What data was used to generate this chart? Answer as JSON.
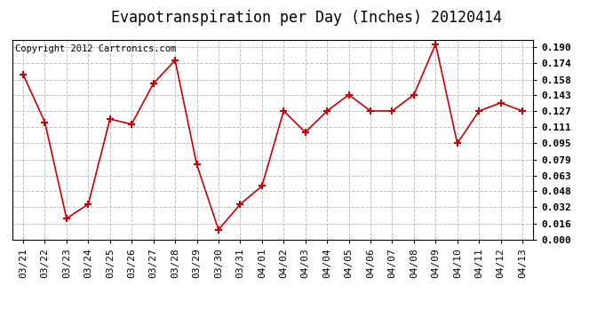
{
  "title": "Evapotranspiration per Day (Inches) 20120414",
  "copyright_text": "Copyright 2012 Cartronics.com",
  "x_labels": [
    "03/21",
    "03/22",
    "03/23",
    "03/24",
    "03/25",
    "03/26",
    "03/27",
    "03/28",
    "03/29",
    "03/30",
    "03/31",
    "04/01",
    "04/02",
    "04/03",
    "04/04",
    "04/05",
    "04/06",
    "04/07",
    "04/08",
    "04/09",
    "04/10",
    "04/11",
    "04/12",
    "04/13"
  ],
  "y_values": [
    0.163,
    0.116,
    0.021,
    0.035,
    0.119,
    0.114,
    0.154,
    0.177,
    0.074,
    0.01,
    0.035,
    0.053,
    0.127,
    0.106,
    0.127,
    0.143,
    0.127,
    0.127,
    0.143,
    0.193,
    0.095,
    0.127,
    0.135,
    0.127
  ],
  "ylim": [
    0.0,
    0.197
  ],
  "yticks": [
    0.0,
    0.016,
    0.032,
    0.048,
    0.063,
    0.079,
    0.095,
    0.111,
    0.127,
    0.143,
    0.158,
    0.174,
    0.19
  ],
  "line_color": "#cc0000",
  "marker": "+",
  "marker_size": 6,
  "marker_color": "#cc0000",
  "bg_color": "#ffffff",
  "grid_color": "#c0c0c0",
  "title_fontsize": 12,
  "tick_fontsize": 8,
  "copyright_fontsize": 7.5
}
